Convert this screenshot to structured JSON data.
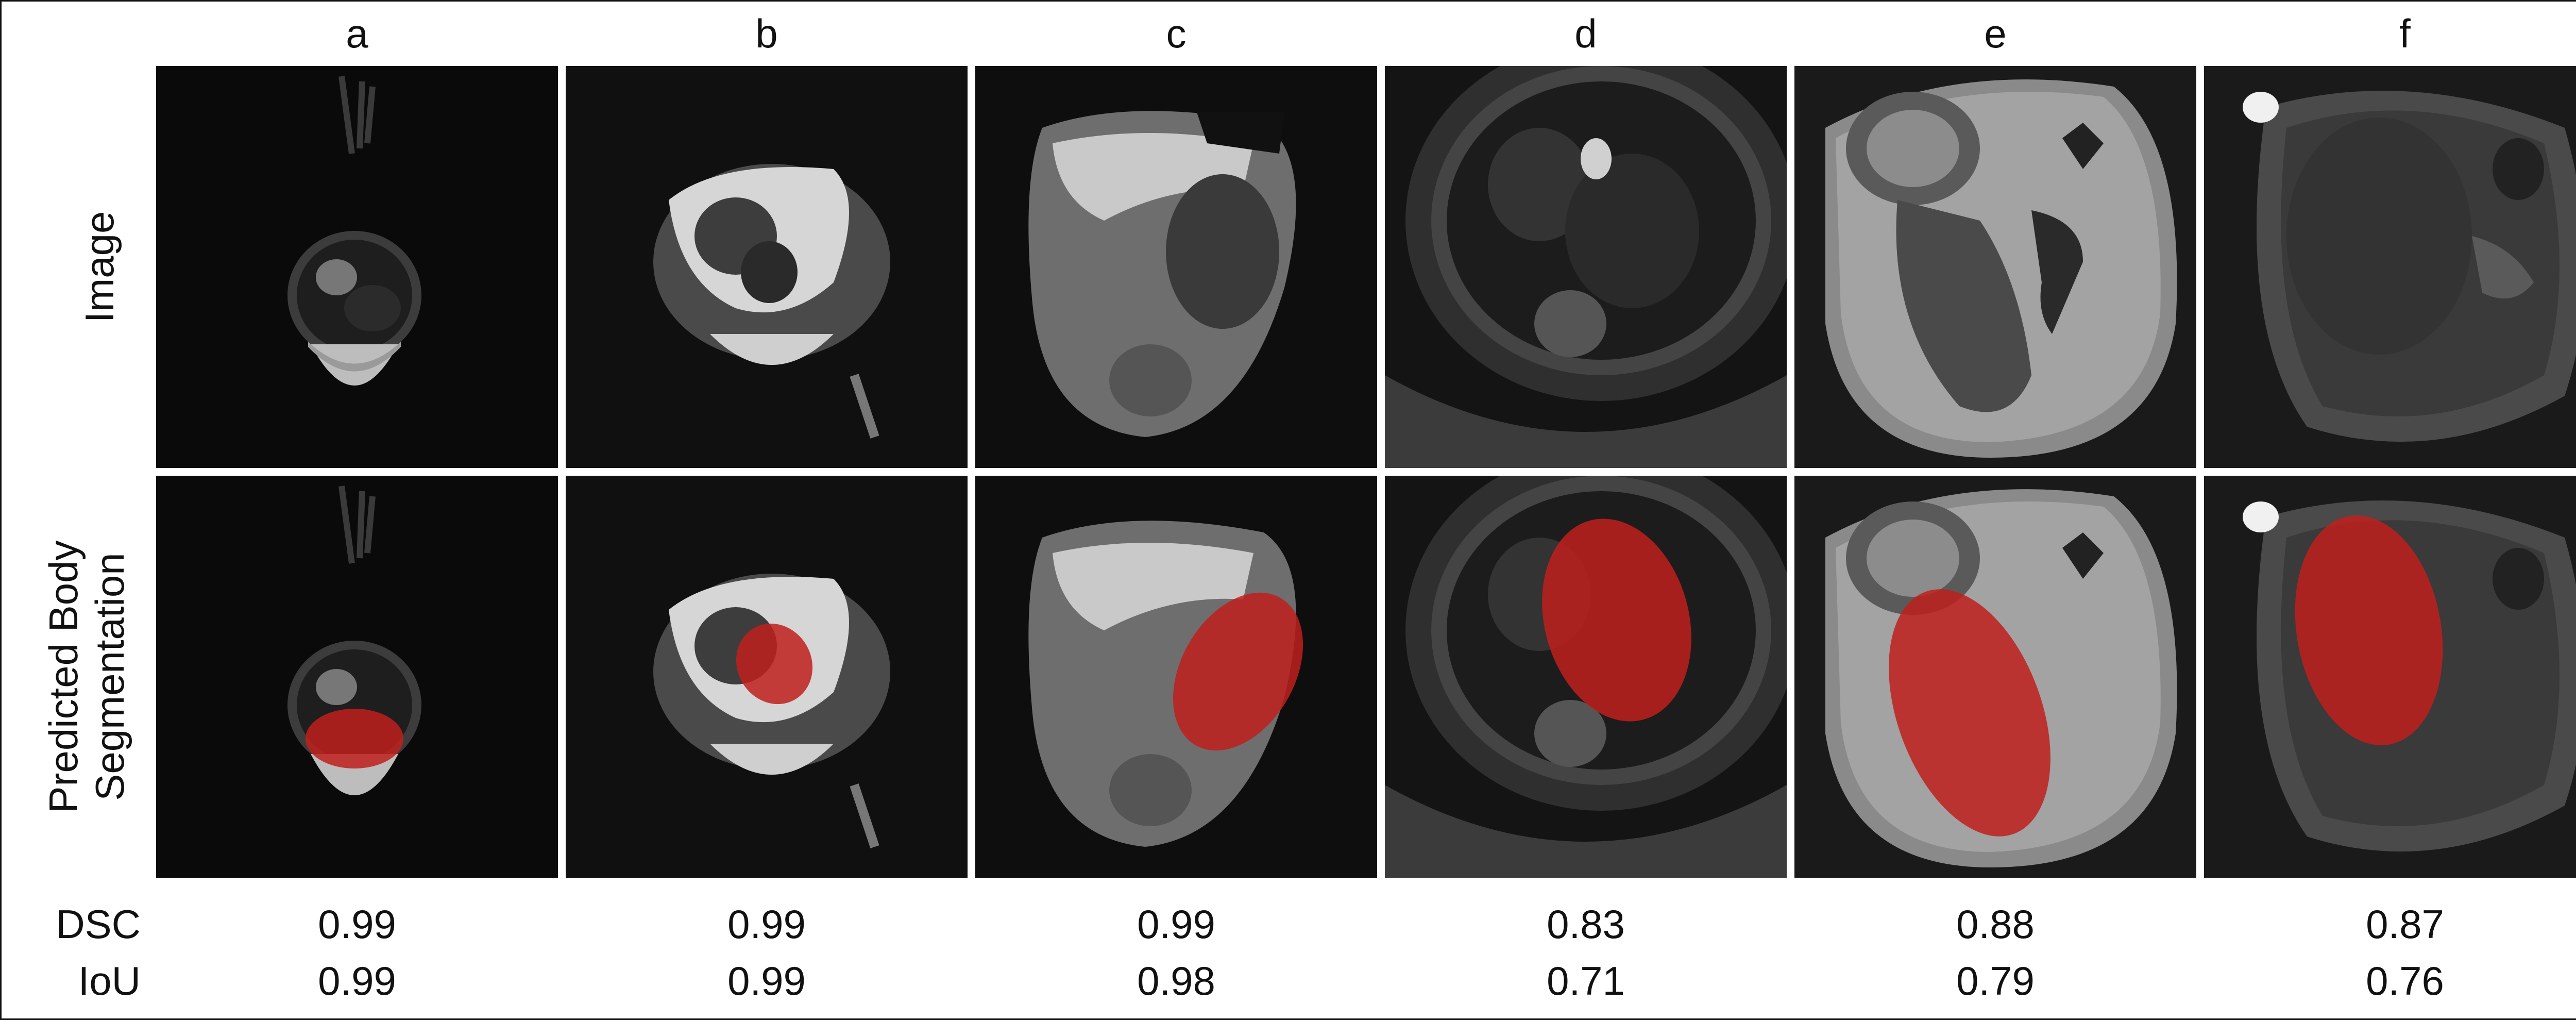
{
  "columns": [
    "a",
    "b",
    "c",
    "d",
    "e",
    "f"
  ],
  "rows": {
    "image_label": "Image",
    "segmentation_label_line1": "Predicted Body",
    "segmentation_label_line2": "Segmentation"
  },
  "metrics": {
    "dsc_label": "DSC",
    "iou_label": "IoU",
    "dsc": [
      "0.99",
      "0.99",
      "0.99",
      "0.83",
      "0.88",
      "0.87"
    ],
    "iou": [
      "0.99",
      "0.99",
      "0.98",
      "0.71",
      "0.79",
      "0.76"
    ]
  },
  "colors": {
    "segmentation_overlay": "#c0201c",
    "background": "#060606",
    "border": "#111111"
  }
}
